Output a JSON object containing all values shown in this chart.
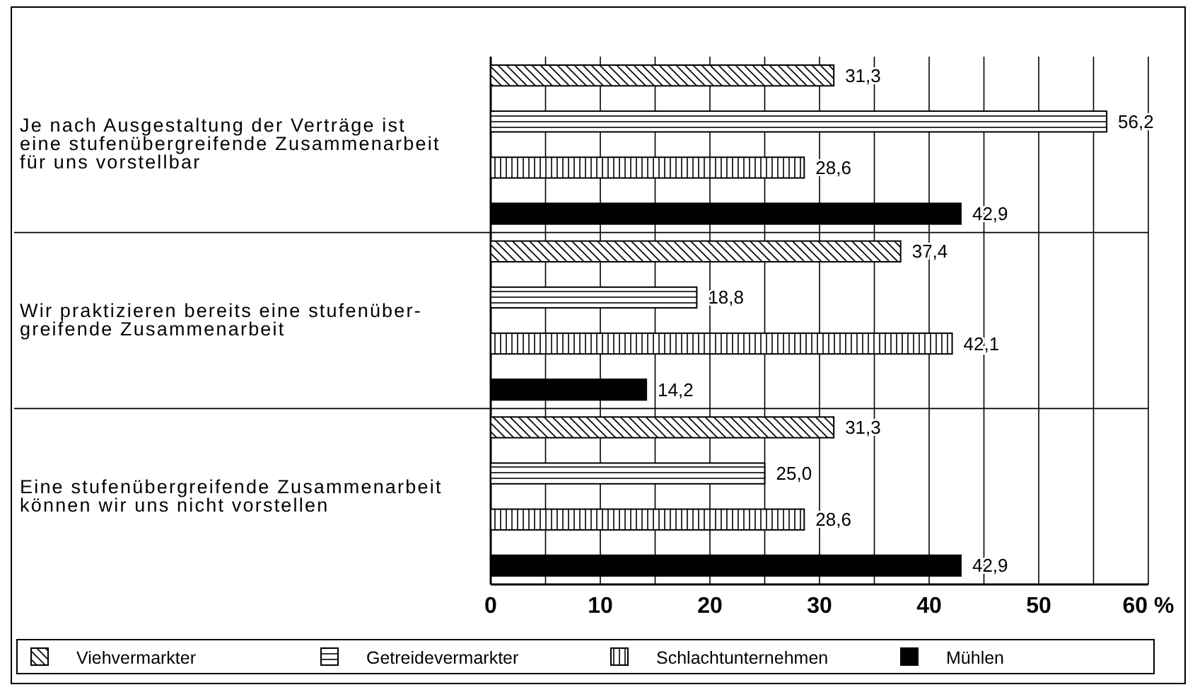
{
  "chart_data": {
    "type": "bar",
    "orientation": "horizontal",
    "categories": [
      "Je nach Ausgestaltung der Verträge ist eine stufenübergreifende Zusammenarbeit für uns vorstellbar",
      "Wir praktizieren bereits eine stufenüber-greifende Zusammenarbeit",
      "Eine stufenübergreifende Zusammenarbeit können wir uns nicht vorstellen"
    ],
    "series": [
      {
        "name": "Viehvermarkter",
        "color": "#000000",
        "values": [
          31.3,
          37.4,
          31.3
        ],
        "value_labels": [
          "31,3",
          "37,4",
          "31,3"
        ]
      },
      {
        "name": "Getreidevermarkter",
        "color": "#000000",
        "values": [
          56.2,
          18.8,
          25.0
        ],
        "value_labels": [
          "56,2",
          "18,8",
          "25,0"
        ]
      },
      {
        "name": "Schlachtunternehmen",
        "color": "#000000",
        "values": [
          28.6,
          42.1,
          28.6
        ],
        "value_labels": [
          "28,6",
          "42,1",
          "28,6"
        ]
      },
      {
        "name": "Mühlen",
        "color": "#000000",
        "values": [
          42.9,
          14.2,
          42.9
        ],
        "value_labels": [
          "42,9",
          "14,2",
          "42,9"
        ]
      }
    ],
    "xlim": [
      0,
      60
    ],
    "xticks": [
      0,
      10,
      20,
      30,
      40,
      50,
      {
        "value": 60,
        "label": "60 %"
      }
    ],
    "grid": "x",
    "legend": "bottom"
  }
}
